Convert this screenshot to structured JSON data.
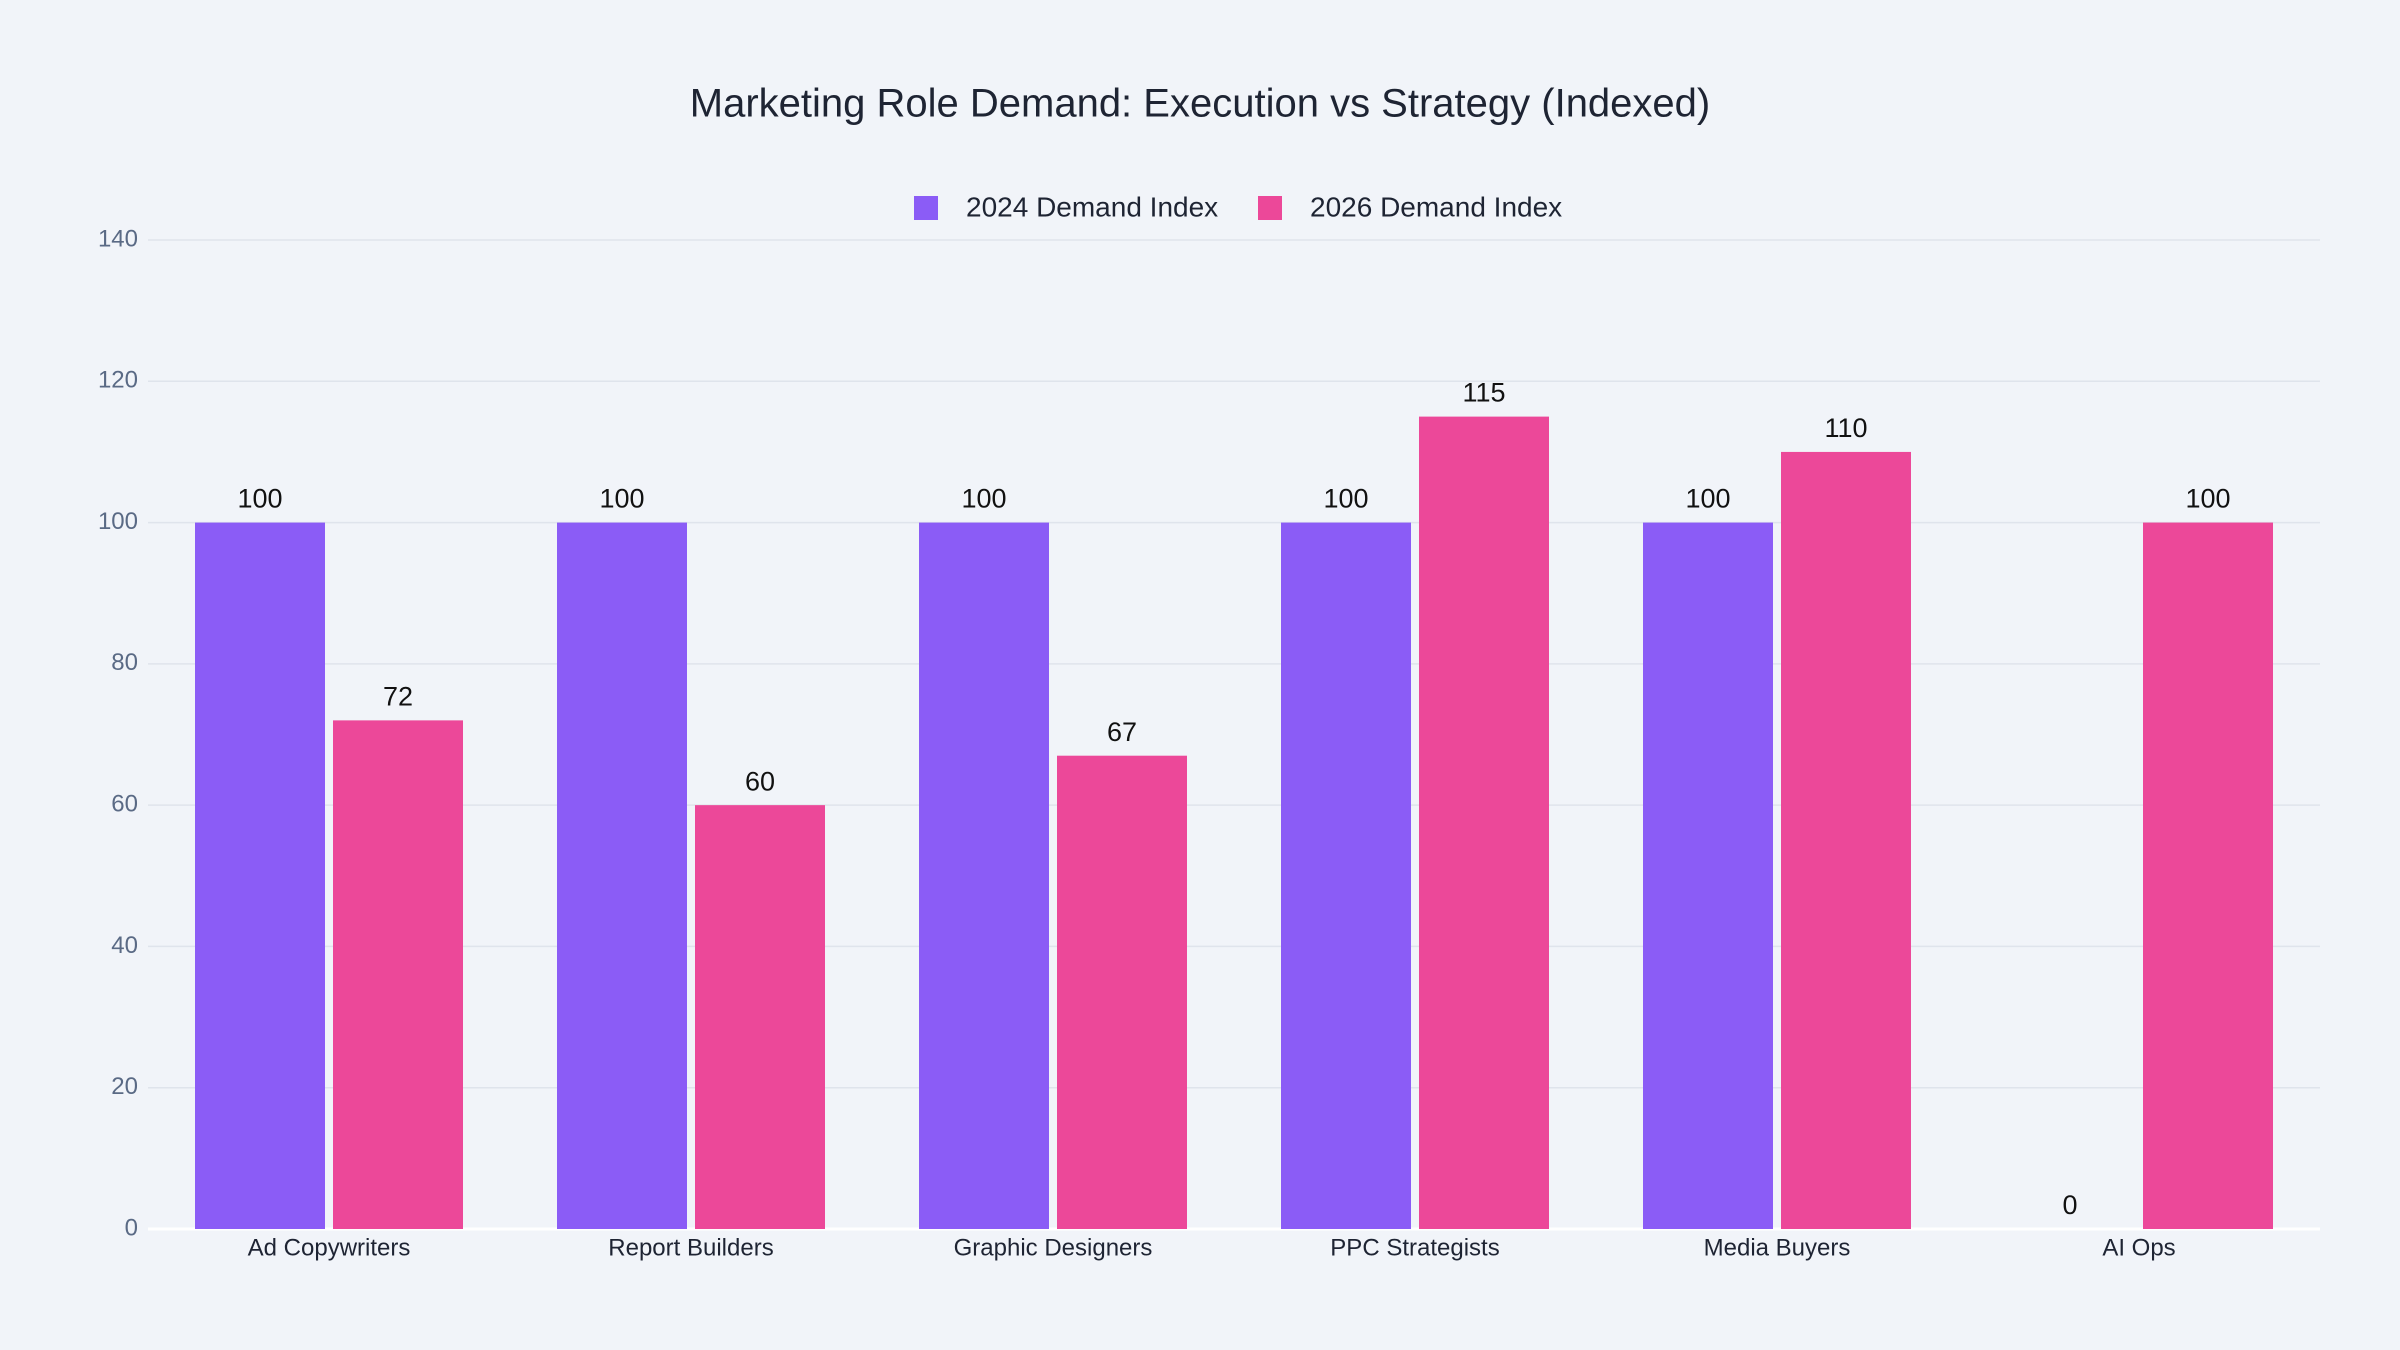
{
  "chart_data": {
    "type": "bar",
    "title": "Marketing Role Demand: Execution vs Strategy (Indexed)",
    "categories": [
      "Ad Copywriters",
      "Report Builders",
      "Graphic Designers",
      "PPC Strategists",
      "Media Buyers",
      "AI Ops"
    ],
    "series": [
      {
        "name": "2024 Demand Index",
        "color": "#8b5cf6",
        "values": [
          100,
          100,
          100,
          100,
          100,
          0
        ]
      },
      {
        "name": "2026 Demand Index",
        "color": "#ec4899",
        "values": [
          72,
          60,
          67,
          115,
          110,
          100
        ]
      }
    ],
    "ylim": [
      0,
      140
    ],
    "yticks": [
      0,
      20,
      40,
      60,
      80,
      100,
      120,
      140
    ],
    "grid": true,
    "legend": "top"
  }
}
